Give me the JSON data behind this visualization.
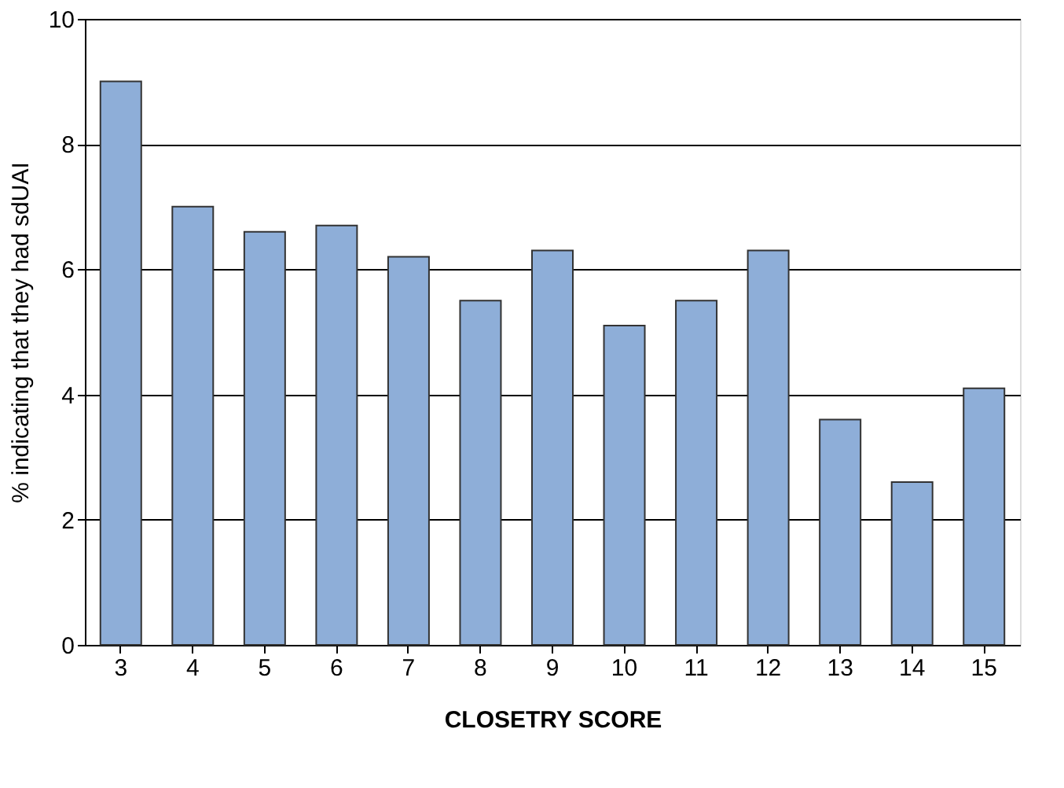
{
  "chart_data": {
    "type": "bar",
    "xlabel": "CLOSETRY SCORE",
    "ylabel": "% indicating that they had sdUAI",
    "categories": [
      "3",
      "4",
      "5",
      "6",
      "7",
      "8",
      "9",
      "10",
      "11",
      "12",
      "13",
      "14",
      "15"
    ],
    "values": [
      9.0,
      7.0,
      6.6,
      6.7,
      6.2,
      5.5,
      6.3,
      5.1,
      5.5,
      6.3,
      3.6,
      2.6,
      4.1
    ],
    "color": "#8eaed8",
    "ylim": [
      0,
      10
    ],
    "yticks": [
      0,
      2,
      4,
      6,
      8,
      10
    ],
    "grid": "y"
  }
}
